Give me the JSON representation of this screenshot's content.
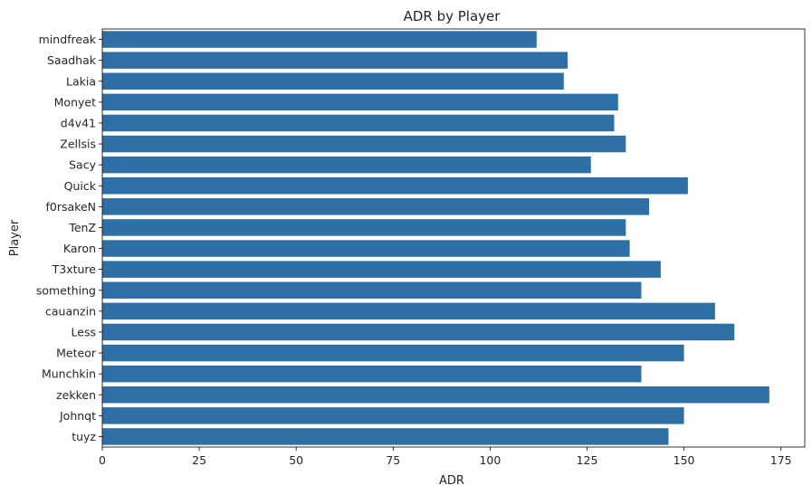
{
  "chart_data": {
    "type": "bar",
    "orientation": "horizontal",
    "title": "ADR by Player",
    "xlabel": "ADR",
    "ylabel": "Player",
    "xlim": [
      0,
      180
    ],
    "xticks": [
      0,
      25,
      50,
      75,
      100,
      125,
      150,
      175
    ],
    "grid": false,
    "bar_color": "#2e6fa6",
    "categories": [
      "mindfreak",
      "Saadhak",
      "Lakia",
      "Monyet",
      "d4v41",
      "Zellsis",
      "Sacy",
      "Quick",
      "f0rsakeN",
      "TenZ",
      "Karon",
      "T3xture",
      "something",
      "cauanzin",
      "Less",
      "Meteor",
      "Munchkin",
      "zekken",
      "Johnqt",
      "tuyz"
    ],
    "values": [
      112,
      120,
      119,
      133,
      132,
      135,
      126,
      151,
      141,
      135,
      136,
      144,
      139,
      158,
      163,
      150,
      139,
      172,
      150,
      146
    ]
  }
}
